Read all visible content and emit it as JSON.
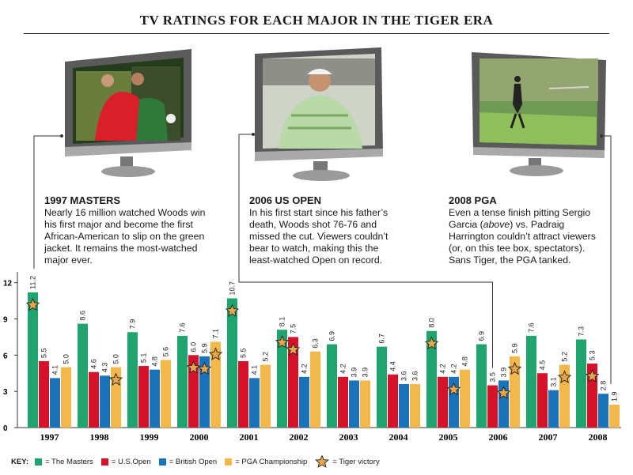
{
  "title": "TV RATINGS FOR EACH MAJOR IN THE TIGER ERA",
  "callouts": [
    {
      "heading": "1997 MASTERS",
      "body": "Nearly 16 million watched Woods win his first major and become the first African-American to slip on the green jacket. It remains the most-watched major ever."
    },
    {
      "heading": "2006 US OPEN",
      "body": "In his first start since his father’s death, Woods shot 76-76 and missed the cut. Viewers couldn’t bear to watch, making this the least-watched Open on record."
    },
    {
      "heading": "2008 PGA",
      "body_pre": "Even a tense finish pitting Sergio Garcia (",
      "body_em": "above",
      "body_post": ") vs. Padraig Harrington couldn’t attract viewers (or, on this tee box, spectators). Sans Tiger, the PGA tanked."
    }
  ],
  "key": {
    "title": "KEY:",
    "items": [
      "= The Masters",
      "= U.S.Open",
      "= British Open",
      "= PGA Championship",
      "= Tiger victory"
    ]
  },
  "colors": {
    "masters": "#1fa36f",
    "usopen": "#d6122a",
    "british": "#1a73b8",
    "pga": "#f2b84b",
    "star": "#e8a64a"
  },
  "icons": [
    "tv-icon",
    "star-icon"
  ],
  "chart_data": {
    "type": "bar",
    "categories": [
      "1997",
      "1998",
      "1999",
      "2000",
      "2001",
      "2002",
      "2003",
      "2004",
      "2005",
      "2006",
      "2007",
      "2008"
    ],
    "series": [
      {
        "name": "The Masters",
        "values": [
          11.2,
          8.6,
          7.9,
          7.6,
          10.7,
          8.1,
          6.9,
          6.7,
          8.0,
          6.9,
          7.6,
          7.3
        ],
        "labels": [
          "11.2",
          "8.6",
          "7.9",
          "7.6",
          "10.7",
          "8.1",
          "6.9",
          "6.7",
          "8.0",
          "6.9",
          "7.6",
          "7.3"
        ]
      },
      {
        "name": "U.S.Open",
        "values": [
          5.5,
          4.6,
          5.1,
          6.0,
          5.5,
          7.5,
          4.2,
          4.4,
          4.2,
          3.5,
          4.5,
          5.3
        ],
        "labels": [
          "5.5",
          "4.6",
          "5.1",
          "6.0",
          "5.5",
          "7.5",
          "4.2",
          "4.4",
          "4.2",
          "3.5",
          "4.5",
          "5.3"
        ]
      },
      {
        "name": "British Open",
        "values": [
          4.1,
          4.3,
          4.8,
          5.9,
          4.1,
          4.2,
          3.9,
          3.6,
          4.2,
          3.9,
          3.1,
          2.8
        ],
        "labels": [
          "4.1",
          "4.3",
          "4.8",
          "5.9",
          "4.1",
          "4.2",
          "3.9",
          "3.6",
          "4.2",
          "3.9",
          "3.1",
          "2.8"
        ]
      },
      {
        "name": "PGA Championship",
        "values": [
          5.0,
          5.0,
          5.6,
          7.1,
          5.2,
          6.3,
          3.9,
          3.6,
          4.8,
          5.9,
          5.2,
          1.9
        ],
        "labels": [
          "5.0",
          "5.0",
          "5.6",
          "7.1",
          "5.2",
          "6.3",
          "3.9",
          "3.6",
          "4.8",
          "5.9",
          "5.2",
          "1.9"
        ]
      }
    ],
    "tiger_victories": [
      [
        0,
        0
      ],
      [
        1,
        3
      ],
      [
        3,
        1
      ],
      [
        3,
        2
      ],
      [
        3,
        3
      ],
      [
        4,
        0
      ],
      [
        5,
        0
      ],
      [
        5,
        1
      ],
      [
        8,
        0
      ],
      [
        8,
        2
      ],
      [
        9,
        2
      ],
      [
        9,
        3
      ],
      [
        10,
        3
      ],
      [
        11,
        1
      ]
    ],
    "yticks": [
      "0",
      "3",
      "6",
      "9",
      "12"
    ],
    "ytick_values": [
      0,
      3,
      6,
      9,
      12
    ],
    "ylim": [
      0,
      12.5
    ],
    "grid": false,
    "legend": "bottom-left"
  }
}
